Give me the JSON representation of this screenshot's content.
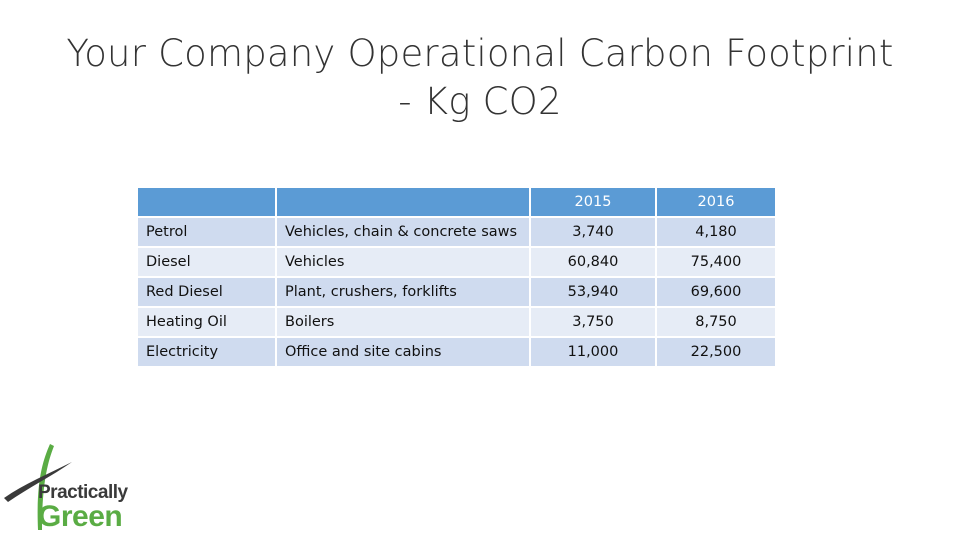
{
  "title": {
    "line1": "Your Company Operational Carbon Footprint",
    "line2": "- Kg CO2"
  },
  "table": {
    "headers": [
      "",
      "",
      "2015",
      "2016"
    ],
    "rows": [
      {
        "fuel": "Petrol",
        "use": "Vehicles, chain & concrete saws",
        "y2015": "3,740",
        "y2016": "4,180"
      },
      {
        "fuel": "Diesel",
        "use": "Vehicles",
        "y2015": "60,840",
        "y2016": "75,400"
      },
      {
        "fuel": "Red Diesel",
        "use": "Plant, crushers, forklifts",
        "y2015": "53,940",
        "y2016": "69,600"
      },
      {
        "fuel": "Heating Oil",
        "use": "Boilers",
        "y2015": "3,750",
        "y2016": "8,750"
      },
      {
        "fuel": "Electricity",
        "use": "Office and site cabins",
        "y2015": "11,000",
        "y2016": "22,500"
      }
    ]
  },
  "logo": {
    "line1": "Practically",
    "line2": "Green",
    "colors": {
      "green": "#5aac44",
      "dark": "#3a3a3a"
    }
  },
  "colors": {
    "header": "#5b9bd5",
    "row": "#dbe3f1"
  }
}
